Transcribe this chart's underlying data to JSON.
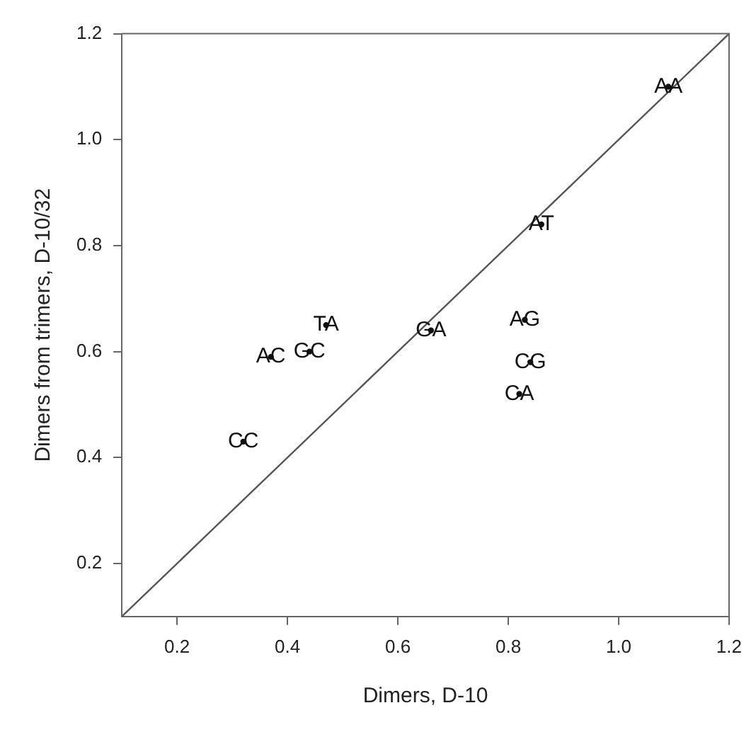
{
  "chart_data": {
    "type": "scatter",
    "xlabel": "Dimers, D-10",
    "ylabel": "Dimers from trimers, D-10/32",
    "xlim": [
      0.1,
      1.2
    ],
    "ylim": [
      0.1,
      1.2
    ],
    "xticks": [
      0.2,
      0.4,
      0.6,
      0.8,
      {
        "value": 1,
        "label": "1.0"
      },
      1.2
    ],
    "yticks": [
      0.2,
      0.4,
      0.6,
      0.8,
      {
        "value": 1,
        "label": "1.0"
      },
      1.2
    ],
    "grid": false,
    "legend": false,
    "series": [
      {
        "type": "line",
        "color": "#555555",
        "x": [
          0.1,
          1.2
        ],
        "values": [
          0.1,
          1.2
        ],
        "line_style": "solid",
        "marker": "none"
      },
      {
        "type": "scatter",
        "color": "#111111",
        "marker": "circle",
        "x": [
          1.09,
          0.86,
          0.47,
          0.37,
          0.44,
          0.66,
          0.83,
          0.84,
          0.82,
          0.32
        ],
        "values": [
          1.1,
          0.84,
          0.65,
          0.59,
          0.6,
          0.64,
          0.66,
          0.58,
          0.52,
          0.43
        ],
        "value_labels": [
          "AA",
          "AT",
          "TA",
          "AC",
          "GC",
          "GA",
          "AG",
          "CG",
          "CA",
          "CC"
        ]
      }
    ]
  }
}
